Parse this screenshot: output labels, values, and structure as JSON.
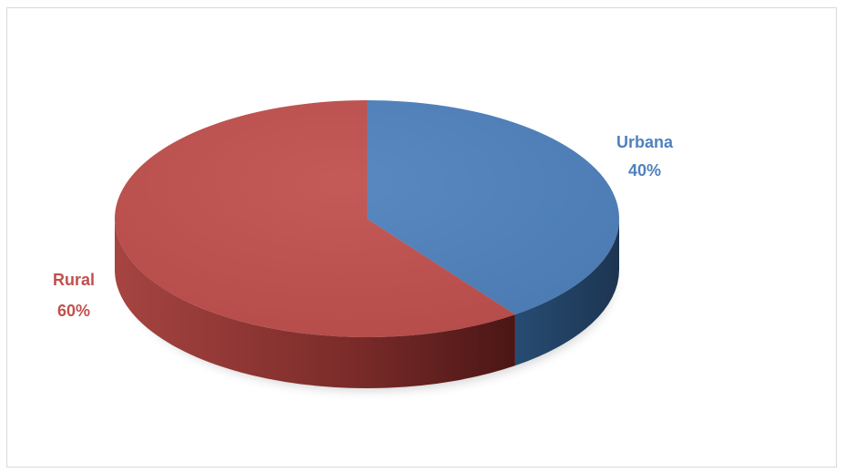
{
  "chart_data": {
    "type": "pie",
    "title": "",
    "style": "3d",
    "slices": [
      {
        "name": "Urbana",
        "value": 40,
        "label": "40%",
        "color": "#4f81bd"
      },
      {
        "name": "Rural",
        "value": 60,
        "label": "60%",
        "color": "#c0504d"
      }
    ],
    "legend": "none",
    "data_labels": "outside"
  }
}
